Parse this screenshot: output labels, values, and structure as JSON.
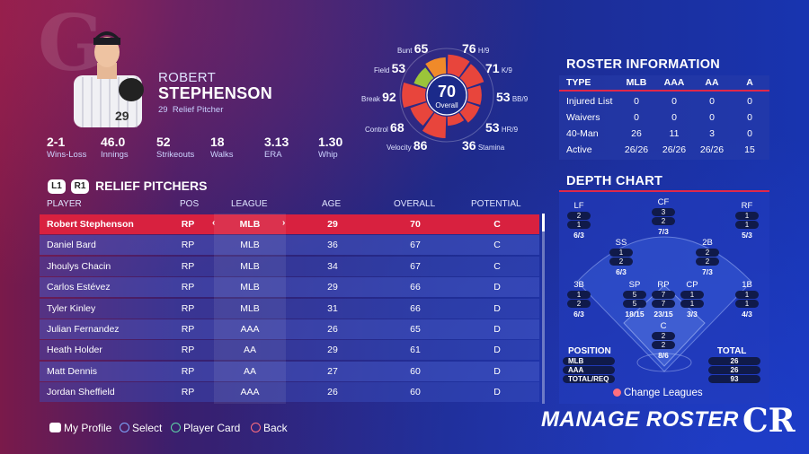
{
  "player": {
    "first_name": "ROBERT",
    "last_name": "STEPHENSON",
    "number": "29",
    "position": "Relief Pitcher",
    "stats": [
      {
        "value": "2-1",
        "label": "Wins-Loss"
      },
      {
        "value": "46.0",
        "label": "Innings"
      },
      {
        "value": "52",
        "label": "Strikeouts"
      },
      {
        "value": "18",
        "label": "Walks"
      },
      {
        "value": "3.13",
        "label": "ERA"
      },
      {
        "value": "1.30",
        "label": "Whip"
      }
    ]
  },
  "ratings": {
    "overall": {
      "value": "70",
      "label": "Overall"
    },
    "items": [
      {
        "label": "Bunt",
        "value": "65"
      },
      {
        "label": "H/9",
        "value": "76"
      },
      {
        "label": "Field",
        "value": "53"
      },
      {
        "label": "K/9",
        "value": "71"
      },
      {
        "label": "Break",
        "value": "92"
      },
      {
        "label": "BB/9",
        "value": "53"
      },
      {
        "label": "Control",
        "value": "68"
      },
      {
        "label": "HR/9",
        "value": "53"
      },
      {
        "label": "Velocity",
        "value": "86"
      },
      {
        "label": "Stamina",
        "value": "36"
      }
    ],
    "colors": {
      "high": "#e8453c",
      "mid": "#f08a2a",
      "low": "#9bc43a",
      "fill": "#e8453c"
    }
  },
  "roster_info": {
    "title": "ROSTER INFORMATION",
    "columns": [
      "TYPE",
      "MLB",
      "AAA",
      "AA",
      "A"
    ],
    "rows": [
      {
        "type": "Injured List",
        "mlb": "0",
        "aaa": "0",
        "aa": "0",
        "a": "0"
      },
      {
        "type": "Waivers",
        "mlb": "0",
        "aaa": "0",
        "aa": "0",
        "a": "0"
      },
      {
        "type": "40-Man",
        "mlb": "26",
        "aaa": "11",
        "aa": "3",
        "a": "0"
      },
      {
        "type": "Active",
        "mlb": "26/26",
        "aaa": "26/26",
        "aa": "26/26",
        "a": "15"
      }
    ]
  },
  "depth_chart": {
    "title": "DEPTH CHART",
    "positions": [
      {
        "pos": "LF",
        "a": "2",
        "b": "1",
        "ratio": "6/3"
      },
      {
        "pos": "CF",
        "a": "3",
        "b": "2",
        "ratio": "7/3"
      },
      {
        "pos": "RF",
        "a": "1",
        "b": "1",
        "ratio": "5/3"
      },
      {
        "pos": "SS",
        "a": "1",
        "b": "2",
        "ratio": "6/3"
      },
      {
        "pos": "2B",
        "a": "2",
        "b": "2",
        "ratio": "7/3"
      },
      {
        "pos": "3B",
        "a": "1",
        "b": "2",
        "ratio": "6/3"
      },
      {
        "pos": "SP",
        "a": "5",
        "b": "5",
        "ratio": "18/15"
      },
      {
        "pos": "RP",
        "a": "7",
        "b": "7",
        "ratio": "23/15"
      },
      {
        "pos": "CP",
        "a": "1",
        "b": "1",
        "ratio": "3/3"
      },
      {
        "pos": "1B",
        "a": "1",
        "b": "1",
        "ratio": "4/3"
      },
      {
        "pos": "C",
        "a": "2",
        "b": "2",
        "ratio": "8/6"
      }
    ],
    "legend": {
      "position_label": "POSITION",
      "total_label": "TOTAL",
      "rows": [
        {
          "label": "MLB",
          "total": "26"
        },
        {
          "label": "AAA",
          "total": "26"
        },
        {
          "label": "TOTAL/REQ",
          "total": "93"
        }
      ]
    },
    "change_leagues": "Change Leagues"
  },
  "table": {
    "buttons": [
      "L1",
      "R1"
    ],
    "title": "RELIEF PITCHERS",
    "columns": [
      "PLAYER",
      "POS",
      "LEAGUE",
      "AGE",
      "OVERALL",
      "POTENTIAL"
    ],
    "rows": [
      {
        "player": "Robert Stephenson",
        "pos": "RP",
        "league": "MLB",
        "age": "29",
        "overall": "70",
        "potential": "C"
      },
      {
        "player": "Daniel Bard",
        "pos": "RP",
        "league": "MLB",
        "age": "36",
        "overall": "67",
        "potential": "C"
      },
      {
        "player": "Jhoulys Chacin",
        "pos": "RP",
        "league": "MLB",
        "age": "34",
        "overall": "67",
        "potential": "C"
      },
      {
        "player": "Carlos Estévez",
        "pos": "RP",
        "league": "MLB",
        "age": "29",
        "overall": "66",
        "potential": "D"
      },
      {
        "player": "Tyler Kinley",
        "pos": "RP",
        "league": "MLB",
        "age": "31",
        "overall": "66",
        "potential": "D"
      },
      {
        "player": "Julian Fernandez",
        "pos": "RP",
        "league": "AAA",
        "age": "26",
        "overall": "65",
        "potential": "D"
      },
      {
        "player": "Heath Holder",
        "pos": "RP",
        "league": "AA",
        "age": "29",
        "overall": "61",
        "potential": "D"
      },
      {
        "player": "Matt Dennis",
        "pos": "RP",
        "league": "AA",
        "age": "27",
        "overall": "60",
        "potential": "D"
      },
      {
        "player": "Jordan Sheffield",
        "pos": "RP",
        "league": "AAA",
        "age": "26",
        "overall": "60",
        "potential": "D"
      }
    ]
  },
  "footer": {
    "hints": [
      {
        "label": "My Profile",
        "icon": "touchpad-icon",
        "color": "#ffffff"
      },
      {
        "label": "Select",
        "icon": "cross-button-icon",
        "color": "#7fa8ff"
      },
      {
        "label": "Player Card",
        "icon": "triangle-button-icon",
        "color": "#5fd6a8"
      },
      {
        "label": "Back",
        "icon": "circle-button-icon",
        "color": "#ff6f7f"
      }
    ],
    "screen_title": "MANAGE ROSTER"
  },
  "colors": {
    "selected_row": "#d8213f",
    "accent_line": "#e0284a"
  }
}
